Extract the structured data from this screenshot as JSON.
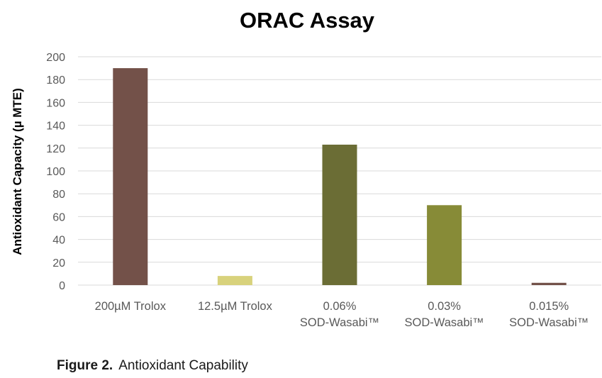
{
  "chart_data": {
    "type": "bar",
    "title": "ORAC Assay",
    "ylabel": "Antioxidant Capacity (µ MTE)",
    "xlabel": "",
    "ylim": [
      0,
      200
    ],
    "yticks": [
      0,
      20,
      40,
      60,
      80,
      100,
      120,
      140,
      160,
      180,
      200
    ],
    "grid": true,
    "legend": "none",
    "categories": [
      [
        "200µM Trolox"
      ],
      [
        "12.5µM Trolox"
      ],
      [
        "0.06%",
        "SOD-Wasabi™"
      ],
      [
        "0.03%",
        "SOD-Wasabi™"
      ],
      [
        "0.015%",
        "SOD-Wasabi™"
      ]
    ],
    "values": [
      190,
      8,
      123,
      70,
      2
    ],
    "colors": [
      "#735149",
      "#d8d27c",
      "#6b6d35",
      "#878b37",
      "#735149"
    ],
    "gridline_color": "#d9d9d9"
  },
  "caption": {
    "label": "Figure 2.",
    "text": "Antioxidant Capability"
  }
}
